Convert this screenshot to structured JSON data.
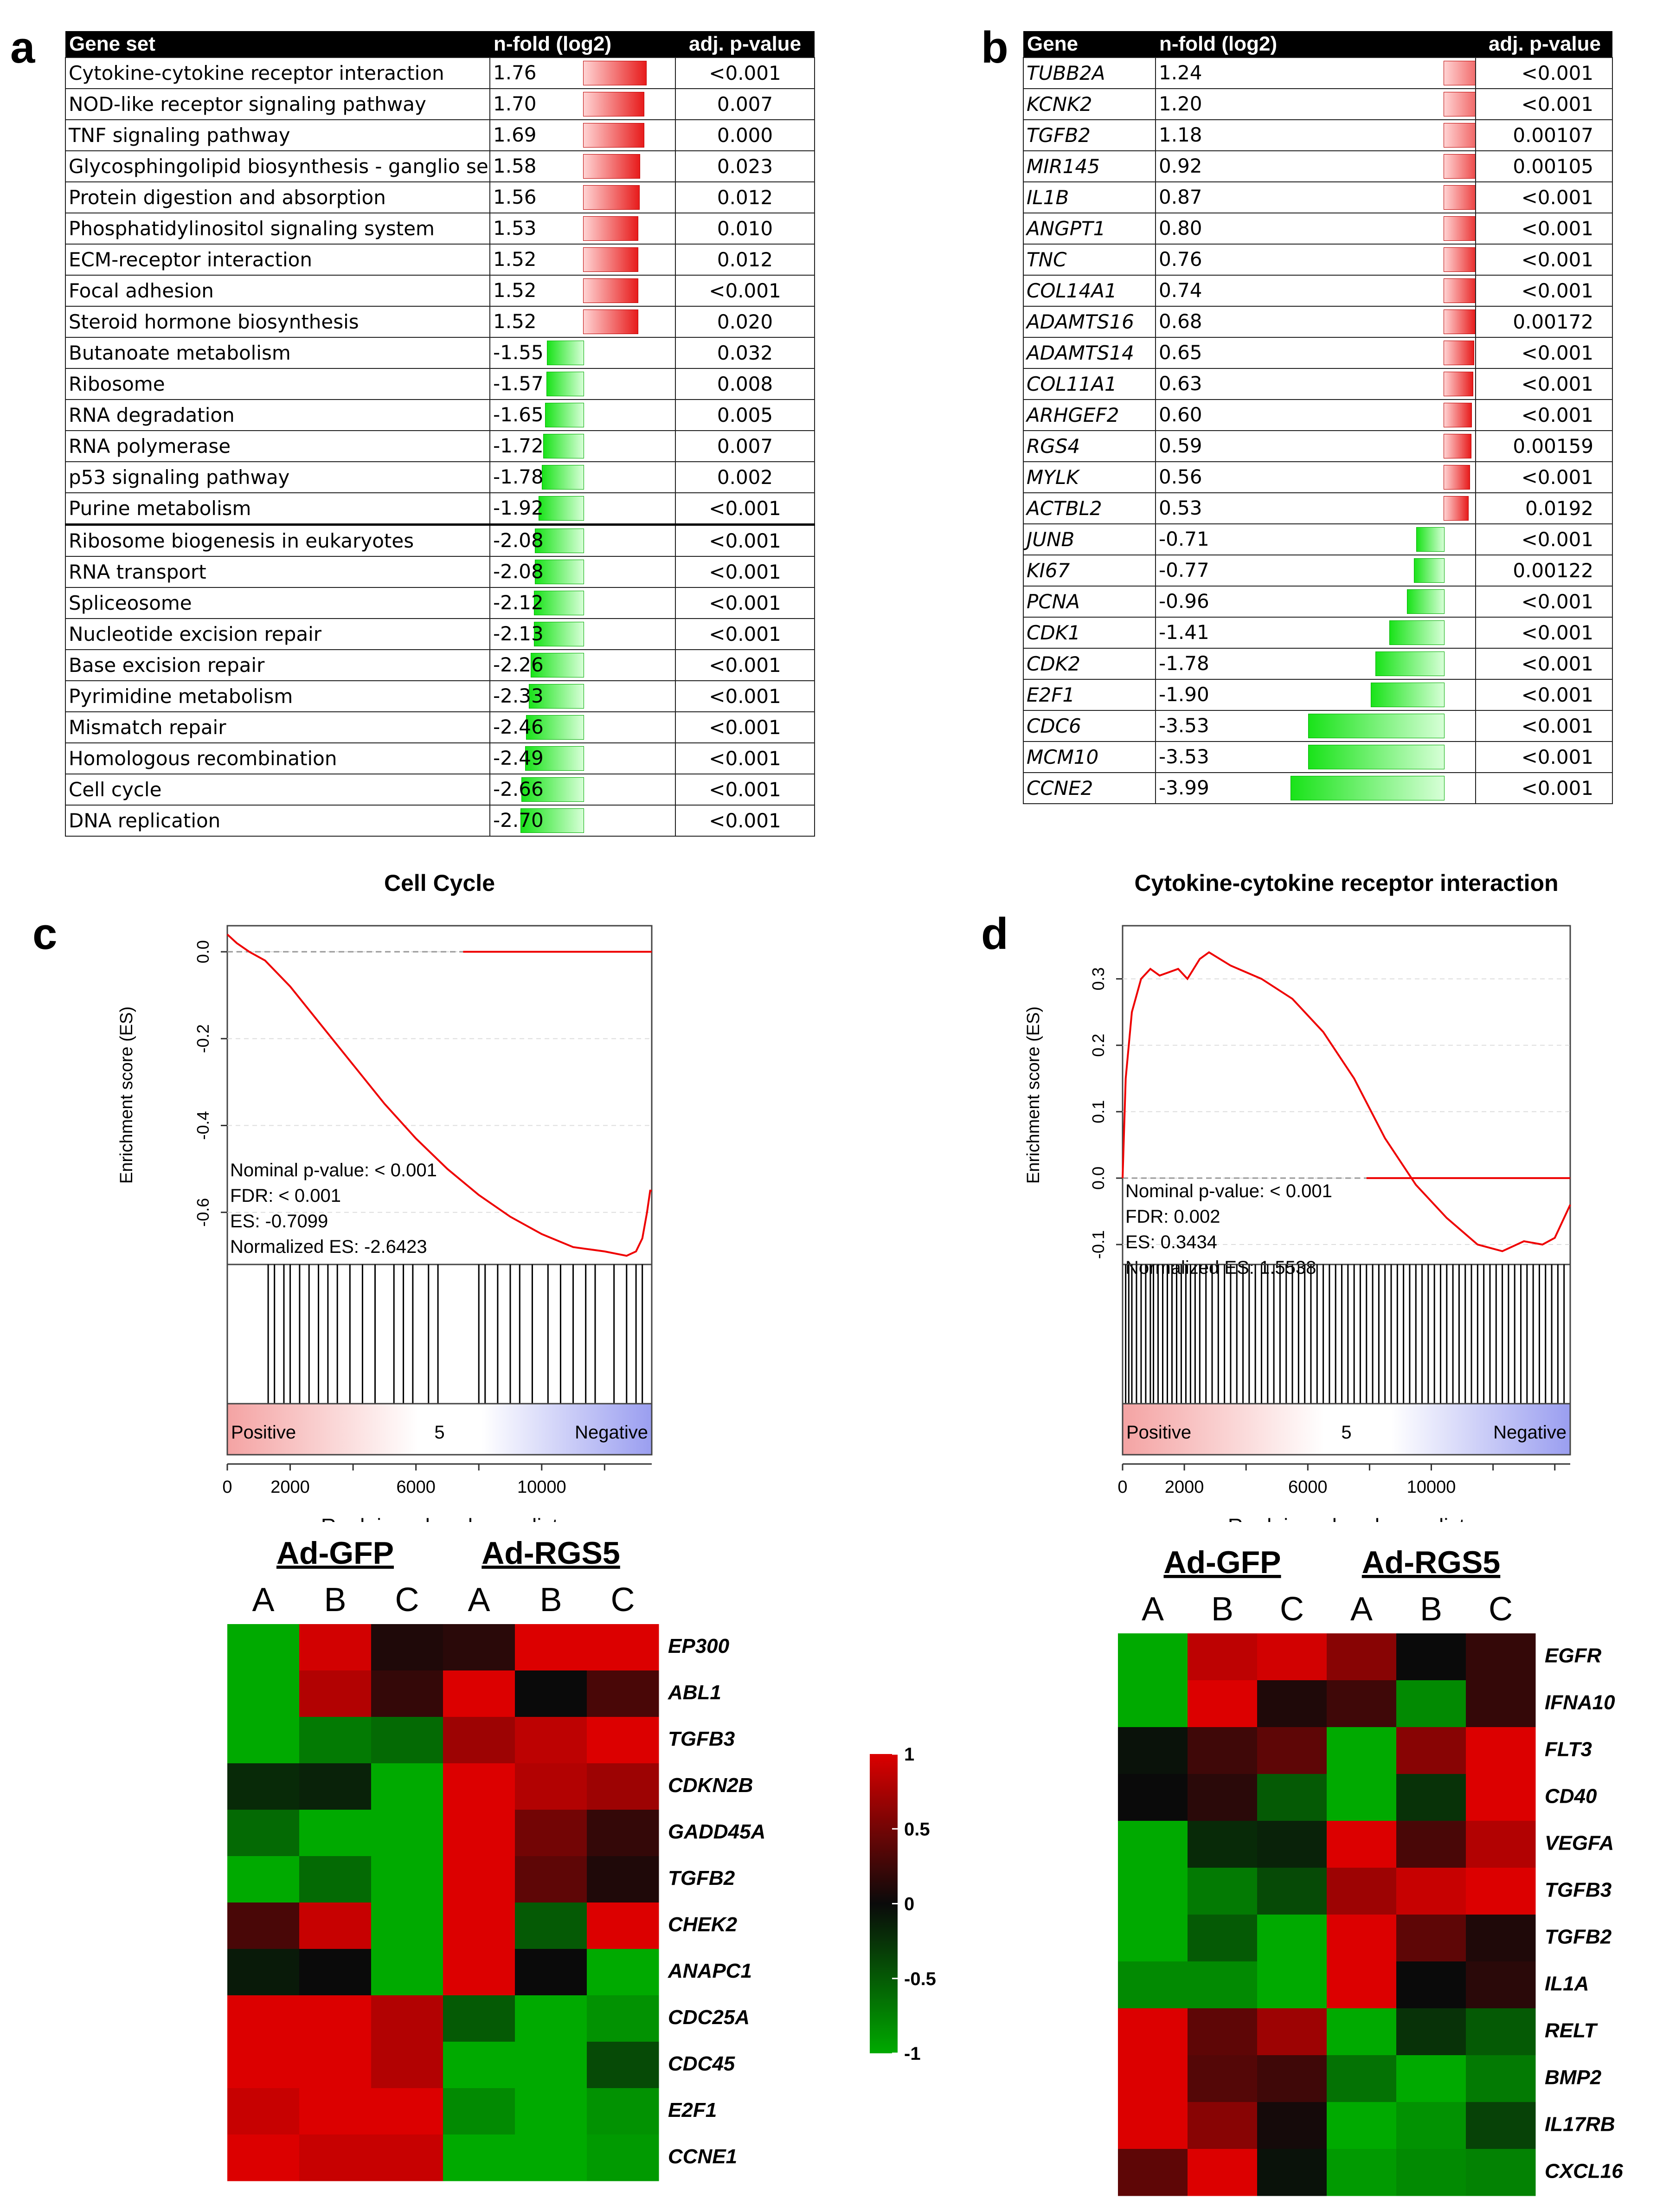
{
  "panels": {
    "a": "a",
    "b": "b",
    "c": "c",
    "d": "d"
  },
  "table_a": {
    "headers": [
      "Gene set",
      "n-fold (log2)",
      "adj. p-value"
    ],
    "rows": [
      {
        "name": "Cytokine-cytokine receptor interaction",
        "fold": 1.76,
        "fold_label": "1.76",
        "p": "<0.001"
      },
      {
        "name": "NOD-like receptor signaling pathway",
        "fold": 1.7,
        "fold_label": "1.70",
        "p": "0.007"
      },
      {
        "name": "TNF signaling pathway",
        "fold": 1.69,
        "fold_label": "1.69",
        "p": "0.000"
      },
      {
        "name": "Glycosphingolipid biosynthesis - ganglio series",
        "fold": 1.58,
        "fold_label": "1.58",
        "p": "0.023"
      },
      {
        "name": "Protein digestion and absorption",
        "fold": 1.56,
        "fold_label": "1.56",
        "p": "0.012"
      },
      {
        "name": "Phosphatidylinositol signaling system",
        "fold": 1.53,
        "fold_label": "1.53",
        "p": "0.010"
      },
      {
        "name": "ECM-receptor interaction",
        "fold": 1.52,
        "fold_label": "1.52",
        "p": "0.012"
      },
      {
        "name": "Focal adhesion",
        "fold": 1.52,
        "fold_label": "1.52",
        "p": "<0.001"
      },
      {
        "name": "Steroid hormone biosynthesis",
        "fold": 1.52,
        "fold_label": "1.52",
        "p": "0.020"
      },
      {
        "name": "Butanoate metabolism",
        "fold": -1.55,
        "fold_label": "-1.55",
        "p": "0.032"
      },
      {
        "name": "Ribosome",
        "fold": -1.57,
        "fold_label": "-1.57",
        "p": "0.008"
      },
      {
        "name": "RNA degradation",
        "fold": -1.65,
        "fold_label": "-1.65",
        "p": "0.005"
      },
      {
        "name": "RNA polymerase",
        "fold": -1.72,
        "fold_label": "-1.72",
        "p": "0.007"
      },
      {
        "name": "p53 signaling pathway",
        "fold": -1.78,
        "fold_label": "-1.78",
        "p": "0.002"
      },
      {
        "name": "Purine metabolism",
        "fold": -1.92,
        "fold_label": "-1.92",
        "p": "<0.001"
      },
      {
        "name": "Ribosome biogenesis in eukaryotes",
        "fold": -2.08,
        "fold_label": "-2.08",
        "p": "<0.001"
      },
      {
        "name": "RNA transport",
        "fold": -2.08,
        "fold_label": "-2.08",
        "p": "<0.001"
      },
      {
        "name": "Spliceosome",
        "fold": -2.12,
        "fold_label": "-2.12",
        "p": "<0.001"
      },
      {
        "name": "Nucleotide excision repair",
        "fold": -2.13,
        "fold_label": "-2.13",
        "p": "<0.001"
      },
      {
        "name": "Base excision repair",
        "fold": -2.26,
        "fold_label": "-2.26",
        "p": "<0.001"
      },
      {
        "name": "Pyrimidine metabolism",
        "fold": -2.33,
        "fold_label": "-2.33",
        "p": "<0.001"
      },
      {
        "name": "Mismatch repair",
        "fold": -2.46,
        "fold_label": "-2.46",
        "p": "<0.001"
      },
      {
        "name": "Homologous recombination",
        "fold": -2.49,
        "fold_label": "-2.49",
        "p": "<0.001"
      },
      {
        "name": "Cell cycle",
        "fold": -2.66,
        "fold_label": "-2.66",
        "p": "<0.001"
      },
      {
        "name": "DNA replication",
        "fold": -2.7,
        "fold_label": "-2.70",
        "p": "<0.001"
      }
    ]
  },
  "table_b": {
    "headers": [
      "Gene",
      "n-fold (log2)",
      "adj. p-value"
    ],
    "rows": [
      {
        "name": "TUBB2A",
        "fold": 1.24,
        "fold_label": "1.24",
        "p": "<0.001"
      },
      {
        "name": "KCNK2",
        "fold": 1.2,
        "fold_label": "1.20",
        "p": "<0.001"
      },
      {
        "name": "TGFB2",
        "fold": 1.18,
        "fold_label": "1.18",
        "p": "0.00107"
      },
      {
        "name": "MIR145",
        "fold": 0.92,
        "fold_label": "0.92",
        "p": "0.00105"
      },
      {
        "name": "IL1B",
        "fold": 0.87,
        "fold_label": "0.87",
        "p": "<0.001"
      },
      {
        "name": "ANGPT1",
        "fold": 0.8,
        "fold_label": "0.80",
        "p": "<0.001"
      },
      {
        "name": "TNC",
        "fold": 0.76,
        "fold_label": "0.76",
        "p": "<0.001"
      },
      {
        "name": "COL14A1",
        "fold": 0.74,
        "fold_label": "0.74",
        "p": "<0.001"
      },
      {
        "name": "ADAMTS16",
        "fold": 0.68,
        "fold_label": "0.68",
        "p": "0.00172"
      },
      {
        "name": "ADAMTS14",
        "fold": 0.65,
        "fold_label": "0.65",
        "p": "<0.001"
      },
      {
        "name": "COL11A1",
        "fold": 0.63,
        "fold_label": "0.63",
        "p": "<0.001"
      },
      {
        "name": "ARHGEF2",
        "fold": 0.6,
        "fold_label": "0.60",
        "p": "<0.001"
      },
      {
        "name": "RGS4",
        "fold": 0.59,
        "fold_label": "0.59",
        "p": "0.00159"
      },
      {
        "name": "MYLK",
        "fold": 0.56,
        "fold_label": "0.56",
        "p": "<0.001"
      },
      {
        "name": "ACTBL2",
        "fold": 0.53,
        "fold_label": "0.53",
        "p": "0.0192"
      },
      {
        "name": "JUNB",
        "fold": -0.71,
        "fold_label": "-0.71",
        "p": "<0.001"
      },
      {
        "name": "KI67",
        "fold": -0.77,
        "fold_label": "-0.77",
        "p": "0.00122"
      },
      {
        "name": "PCNA",
        "fold": -0.96,
        "fold_label": "-0.96",
        "p": "<0.001"
      },
      {
        "name": "CDK1",
        "fold": -1.41,
        "fold_label": "-1.41",
        "p": "<0.001"
      },
      {
        "name": "CDK2",
        "fold": -1.78,
        "fold_label": "-1.78",
        "p": "<0.001"
      },
      {
        "name": "E2F1",
        "fold": -1.9,
        "fold_label": "-1.90",
        "p": "<0.001"
      },
      {
        "name": "CDC6",
        "fold": -3.53,
        "fold_label": "-3.53",
        "p": "<0.001"
      },
      {
        "name": "MCM10",
        "fold": -3.53,
        "fold_label": "-3.53",
        "p": "<0.001"
      },
      {
        "name": "CCNE2",
        "fold": -3.99,
        "fold_label": "-3.99",
        "p": "<0.001"
      }
    ]
  },
  "chart_data": [
    {
      "type": "line",
      "id": "gsea_c",
      "title": "Cell Cycle",
      "ylabel": "Enrichment score (ES)",
      "xlabel": "Rank in ordered gene list",
      "ylim": [
        -0.72,
        0.06
      ],
      "xlim": [
        0,
        13500
      ],
      "yticks": [
        "0.0",
        "-0.2",
        "-0.4",
        "-0.6"
      ],
      "ytick_values": [
        0.0,
        -0.2,
        -0.4,
        -0.6
      ],
      "xticks": [
        "0",
        "2000",
        "6000",
        "10000"
      ],
      "xtick_values": [
        0,
        2000,
        6000,
        10000
      ],
      "x": [
        0,
        300,
        700,
        1200,
        2000,
        3000,
        4000,
        5000,
        6000,
        7000,
        8000,
        9000,
        10000,
        11000,
        12000,
        12700,
        13000,
        13200,
        13350,
        13450,
        13500
      ],
      "y": [
        0.04,
        0.02,
        0.0,
        -0.02,
        -0.08,
        -0.17,
        -0.26,
        -0.35,
        -0.43,
        -0.5,
        -0.56,
        -0.61,
        -0.65,
        -0.68,
        -0.69,
        -0.7,
        -0.69,
        -0.66,
        -0.6,
        -0.55,
        -0.55
      ],
      "annotations": [
        "Nominal p-value: < 0.001",
        "FDR: < 0.001",
        "ES: -0.7099",
        "Normalized ES: -2.6423"
      ],
      "rank_bar": {
        "left": "Positive",
        "center": "5",
        "right": "Negative"
      },
      "hits": [
        1300,
        1500,
        1800,
        2000,
        2300,
        2600,
        2900,
        3200,
        3500,
        3900,
        4300,
        4700,
        5300,
        5600,
        5900,
        6400,
        6700,
        8000,
        8200,
        8600,
        9000,
        9300,
        9700,
        10200,
        10600,
        11000,
        11400,
        11700,
        12300,
        12700,
        13000,
        13200
      ]
    },
    {
      "type": "line",
      "id": "gsea_d",
      "title": "Cytokine-cytokine receptor interaction",
      "ylabel": "Enrichment score (ES)",
      "xlabel": "Rank in ordered gene list",
      "ylim": [
        -0.13,
        0.38
      ],
      "xlim": [
        0,
        14500
      ],
      "yticks": [
        "0.3",
        "0.2",
        "0.1",
        "0.0",
        "-0.1"
      ],
      "ytick_values": [
        0.3,
        0.2,
        0.1,
        0.0,
        -0.1
      ],
      "xticks": [
        "0",
        "2000",
        "6000",
        "10000"
      ],
      "xtick_values": [
        0,
        2000,
        6000,
        10000
      ],
      "x": [
        0,
        100,
        300,
        600,
        900,
        1200,
        1500,
        1800,
        2100,
        2500,
        2800,
        3500,
        4500,
        5500,
        6500,
        7500,
        8500,
        9500,
        10500,
        11500,
        12300,
        13000,
        13600,
        14000,
        14300,
        14500
      ],
      "y": [
        0.0,
        0.15,
        0.25,
        0.3,
        0.315,
        0.305,
        0.31,
        0.315,
        0.3,
        0.33,
        0.34,
        0.32,
        0.3,
        0.27,
        0.22,
        0.15,
        0.06,
        -0.01,
        -0.06,
        -0.1,
        -0.11,
        -0.095,
        -0.1,
        -0.09,
        -0.06,
        -0.04
      ],
      "annotations": [
        "Nominal p-value: < 0.001",
        "FDR: 0.002",
        "ES: 0.3434",
        "Normalized ES: 1.5538"
      ],
      "rank_bar": {
        "left": "Positive",
        "center": "5",
        "right": "Negative"
      },
      "hits": [
        100,
        200,
        300,
        450,
        600,
        750,
        900,
        1000,
        1150,
        1300,
        1450,
        1600,
        1750,
        1900,
        2050,
        2200,
        2350,
        2500,
        2700,
        2900,
        3100,
        3300,
        3500,
        3700,
        3900,
        4100,
        4300,
        4500,
        4700,
        4900,
        5100,
        5300,
        5500,
        5700,
        5900,
        6100,
        6300,
        6500,
        6700,
        6900,
        7100,
        7300,
        7500,
        7700,
        7900,
        8100,
        8300,
        8500,
        8700,
        8900,
        9100,
        9300,
        9500,
        9700,
        9900,
        10100,
        10300,
        10500,
        10700,
        10900,
        11100,
        11300,
        11500,
        11700,
        11900,
        12100,
        12300,
        12500,
        12700,
        12900,
        13100,
        13300,
        13500,
        13700,
        13900,
        14100,
        14300
      ]
    },
    {
      "type": "heatmap",
      "id": "heatmap_c",
      "groups": [
        "Ad-GFP",
        "Ad-RGS5"
      ],
      "columns": [
        "A",
        "B",
        "C",
        "A",
        "B",
        "C"
      ],
      "rows": [
        "EP300",
        "ABL1",
        "TGFB3",
        "CDKN2B",
        "GADD45A",
        "TGFB2",
        "CHEK2",
        "ANAPC1",
        "CDC25A",
        "CDC45",
        "E2F1",
        "CCNE1"
      ],
      "values": [
        [
          -1,
          0.95,
          0.1,
          0.15,
          1,
          1
        ],
        [
          -1,
          0.8,
          0.2,
          1,
          0.0,
          0.3
        ],
        [
          -1,
          -0.7,
          -0.6,
          0.7,
          0.85,
          1
        ],
        [
          -0.2,
          -0.15,
          -1,
          1,
          0.8,
          0.7
        ],
        [
          -0.6,
          -1,
          -1,
          1,
          0.5,
          0.2
        ],
        [
          -1,
          -0.6,
          -1,
          1,
          0.4,
          0.1
        ],
        [
          0.3,
          0.9,
          -1,
          1,
          -0.5,
          1
        ],
        [
          -0.1,
          0.0,
          -1,
          1,
          0.0,
          -1
        ],
        [
          1,
          1,
          0.8,
          -0.5,
          -1,
          -0.85
        ],
        [
          1,
          1,
          0.8,
          -1,
          -1,
          -0.4
        ],
        [
          0.9,
          1,
          1,
          -0.8,
          -1,
          -0.85
        ],
        [
          1,
          0.9,
          0.9,
          -1,
          -1,
          -0.9
        ]
      ],
      "colorbar": {
        "ticks": [
          "1",
          "0.5",
          "0",
          "-0.5",
          "-1"
        ],
        "tick_values": [
          1,
          0.5,
          0,
          -0.5,
          -1
        ]
      }
    },
    {
      "type": "heatmap",
      "id": "heatmap_d",
      "groups": [
        "Ad-GFP",
        "Ad-RGS5"
      ],
      "columns": [
        "A",
        "B",
        "C",
        "A",
        "B",
        "C"
      ],
      "rows": [
        "EGFR",
        "IFNA10",
        "FLT3",
        "CD40",
        "VEGFA",
        "TGFB3",
        "TGFB2",
        "IL1A",
        "RELT",
        "BMP2",
        "IL17RB",
        "CXCL16"
      ],
      "values": [
        [
          -1,
          0.85,
          0.95,
          0.6,
          0.0,
          0.2
        ],
        [
          -1,
          1,
          0.1,
          0.25,
          -0.8,
          0.2
        ],
        [
          -0.05,
          0.25,
          0.4,
          -1,
          0.6,
          1
        ],
        [
          0.0,
          0.15,
          -0.5,
          -1,
          -0.25,
          1
        ],
        [
          -1,
          -0.2,
          -0.15,
          1,
          0.3,
          0.8
        ],
        [
          -1,
          -0.7,
          -0.4,
          0.7,
          0.9,
          1
        ],
        [
          -1,
          -0.5,
          -1,
          1,
          0.4,
          0.1
        ],
        [
          -0.8,
          -0.8,
          -1,
          1,
          0.0,
          0.15
        ],
        [
          1,
          0.4,
          0.7,
          -1,
          -0.25,
          -0.5
        ],
        [
          1,
          0.35,
          0.25,
          -0.65,
          -1,
          -0.7
        ],
        [
          1,
          0.6,
          0.05,
          -1,
          -0.85,
          -0.35
        ],
        [
          0.4,
          1,
          -0.05,
          -0.9,
          -0.8,
          -0.75
        ]
      ]
    }
  ]
}
